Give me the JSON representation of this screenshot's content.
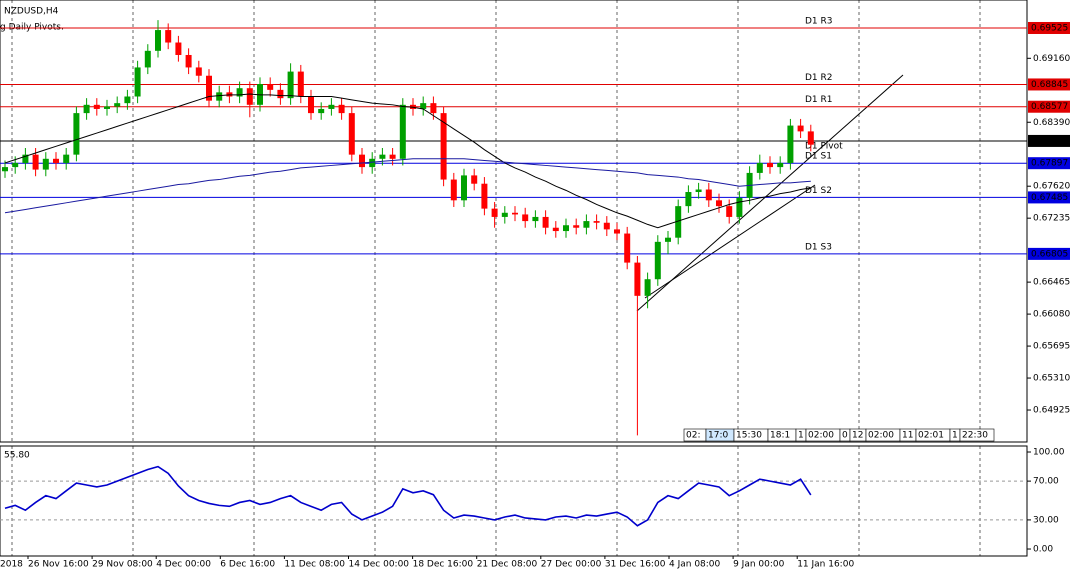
{
  "chart_data": [
    {
      "type": "candlestick",
      "title": "NZDUSD,H4",
      "subtitle": "g Daily Pivots.",
      "up_color": "#00a000",
      "down_color": "#ff0000",
      "open": [
        0.678,
        0.6785,
        0.679,
        0.68,
        0.6782,
        0.6795,
        0.679,
        0.68,
        0.685,
        0.686,
        0.6855,
        0.6858,
        0.6862,
        0.687,
        0.6905,
        0.6925,
        0.695,
        0.6935,
        0.692,
        0.6905,
        0.6895,
        0.6865,
        0.6875,
        0.687,
        0.688,
        0.686,
        0.6885,
        0.6878,
        0.6868,
        0.69,
        0.687,
        0.685,
        0.6855,
        0.686,
        0.685,
        0.68,
        0.6785,
        0.6795,
        0.68,
        0.6795,
        0.686,
        0.6855,
        0.6862,
        0.685,
        0.677,
        0.6745,
        0.6775,
        0.6765,
        0.6735,
        0.6725,
        0.673,
        0.6728,
        0.672,
        0.6725,
        0.6712,
        0.6708,
        0.6715,
        0.6712,
        0.672,
        0.6718,
        0.671,
        0.6705,
        0.667,
        0.663,
        0.665,
        0.6695,
        0.67,
        0.6738,
        0.6755,
        0.6758,
        0.6745,
        0.6738,
        0.6725,
        0.6748,
        0.6778,
        0.679,
        0.6785,
        0.679,
        0.6835,
        0.6828
      ],
      "high": [
        0.6793,
        0.6798,
        0.6808,
        0.6808,
        0.6803,
        0.6803,
        0.6808,
        0.6858,
        0.6868,
        0.6868,
        0.6866,
        0.687,
        0.6878,
        0.6913,
        0.6933,
        0.6962,
        0.6958,
        0.6943,
        0.6928,
        0.6913,
        0.6903,
        0.6883,
        0.6883,
        0.6888,
        0.6888,
        0.6893,
        0.6893,
        0.6886,
        0.691,
        0.6908,
        0.6878,
        0.6863,
        0.6868,
        0.6868,
        0.6858,
        0.6808,
        0.6803,
        0.6808,
        0.6808,
        0.6868,
        0.6868,
        0.687,
        0.687,
        0.6858,
        0.6778,
        0.6783,
        0.6783,
        0.6773,
        0.6743,
        0.6738,
        0.6738,
        0.6736,
        0.6733,
        0.6733,
        0.672,
        0.6723,
        0.6723,
        0.6728,
        0.6728,
        0.6726,
        0.6718,
        0.6713,
        0.6678,
        0.6658,
        0.6703,
        0.6708,
        0.6746,
        0.6763,
        0.6766,
        0.6766,
        0.6753,
        0.6746,
        0.6756,
        0.6786,
        0.68,
        0.6798,
        0.6798,
        0.6843,
        0.6843,
        0.6836
      ],
      "low": [
        0.6772,
        0.6777,
        0.6782,
        0.6774,
        0.6774,
        0.6782,
        0.6782,
        0.6792,
        0.6842,
        0.6847,
        0.6847,
        0.685,
        0.6854,
        0.6862,
        0.6897,
        0.6917,
        0.6927,
        0.6912,
        0.6897,
        0.6887,
        0.6857,
        0.6857,
        0.6862,
        0.6862,
        0.6845,
        0.6852,
        0.687,
        0.686,
        0.686,
        0.6862,
        0.6842,
        0.6842,
        0.6847,
        0.6842,
        0.6792,
        0.6777,
        0.6777,
        0.6787,
        0.6787,
        0.6787,
        0.6847,
        0.6847,
        0.6842,
        0.6762,
        0.6737,
        0.6737,
        0.6757,
        0.6727,
        0.6712,
        0.6717,
        0.672,
        0.6712,
        0.6712,
        0.6704,
        0.67,
        0.67,
        0.6704,
        0.6704,
        0.671,
        0.6702,
        0.6697,
        0.6662,
        0.6462,
        0.6615,
        0.6642,
        0.668,
        0.6692,
        0.673,
        0.6747,
        0.6737,
        0.673,
        0.6717,
        0.6717,
        0.674,
        0.677,
        0.6777,
        0.6777,
        0.6782,
        0.682,
        0.6804
      ],
      "close": [
        0.6785,
        0.679,
        0.68,
        0.6782,
        0.6795,
        0.679,
        0.68,
        0.685,
        0.686,
        0.6855,
        0.6858,
        0.6862,
        0.687,
        0.6905,
        0.6925,
        0.695,
        0.6935,
        0.692,
        0.6905,
        0.6895,
        0.6865,
        0.6875,
        0.687,
        0.688,
        0.686,
        0.6885,
        0.6878,
        0.6868,
        0.69,
        0.687,
        0.685,
        0.6855,
        0.686,
        0.685,
        0.68,
        0.6785,
        0.6795,
        0.68,
        0.6795,
        0.686,
        0.6855,
        0.6862,
        0.685,
        0.677,
        0.6745,
        0.6775,
        0.6765,
        0.6735,
        0.6725,
        0.673,
        0.6728,
        0.672,
        0.6725,
        0.6712,
        0.6708,
        0.6715,
        0.6712,
        0.672,
        0.6718,
        0.671,
        0.6705,
        0.667,
        0.663,
        0.665,
        0.6695,
        0.67,
        0.6738,
        0.6755,
        0.6758,
        0.6745,
        0.6738,
        0.6725,
        0.6748,
        0.6778,
        0.679,
        0.6785,
        0.679,
        0.6835,
        0.6828,
        0.6812
      ],
      "series": [
        {
          "color": "#000000",
          "values": [
            0.679,
            0.6794,
            0.6798,
            0.6802,
            0.6806,
            0.681,
            0.6814,
            0.6818,
            0.6822,
            0.6826,
            0.683,
            0.6834,
            0.6838,
            0.6842,
            0.6846,
            0.685,
            0.6854,
            0.6858,
            0.6862,
            0.6866,
            0.687,
            0.6871,
            0.6872,
            0.6872,
            0.6873,
            0.6872,
            0.6872,
            0.6871,
            0.6871,
            0.687,
            0.687,
            0.687,
            0.687,
            0.6868,
            0.6866,
            0.6864,
            0.6862,
            0.6861,
            0.686,
            0.6858,
            0.6857,
            0.6855,
            0.6847,
            0.6839,
            0.6831,
            0.6823,
            0.6815,
            0.6806,
            0.6798,
            0.679,
            0.6784,
            0.6779,
            0.6773,
            0.6768,
            0.6762,
            0.6757,
            0.6751,
            0.6746,
            0.674,
            0.6735,
            0.673,
            0.6726,
            0.6721,
            0.6716,
            0.6712,
            0.6716,
            0.672,
            0.6724,
            0.6728,
            0.6732,
            0.6736,
            0.674,
            0.6743,
            0.6745,
            0.6748,
            0.675,
            0.6753,
            0.6755,
            0.6758,
            0.676
          ]
        },
        {
          "color": "#1a1aa0",
          "values": [
            0.673,
            0.6732,
            0.6734,
            0.6736,
            0.6738,
            0.674,
            0.6742,
            0.6744,
            0.6746,
            0.6748,
            0.675,
            0.6752,
            0.6754,
            0.6756,
            0.6758,
            0.676,
            0.6762,
            0.6764,
            0.6765,
            0.6767,
            0.6769,
            0.677,
            0.6772,
            0.6774,
            0.6775,
            0.6777,
            0.6779,
            0.678,
            0.6782,
            0.6784,
            0.6785,
            0.6786,
            0.6787,
            0.6788,
            0.6789,
            0.679,
            0.6791,
            0.6792,
            0.6793,
            0.6794,
            0.6795,
            0.6795,
            0.6795,
            0.6795,
            0.6795,
            0.6795,
            0.6794,
            0.6793,
            0.6792,
            0.6791,
            0.679,
            0.6789,
            0.6788,
            0.6787,
            0.6786,
            0.6785,
            0.6784,
            0.6783,
            0.6782,
            0.6781,
            0.678,
            0.6779,
            0.6778,
            0.6776,
            0.6775,
            0.6774,
            0.6773,
            0.6771,
            0.677,
            0.6768,
            0.6766,
            0.6764,
            0.6762,
            0.6763,
            0.6764,
            0.6765,
            0.6766,
            0.6766,
            0.6767,
            0.6768
          ]
        }
      ],
      "levels": [
        {
          "name": "D1 R3",
          "value": 0.69525,
          "color": "#e00000"
        },
        {
          "name": "D1 R2",
          "value": 0.68845,
          "color": "#e00000"
        },
        {
          "name": "D1 R1",
          "value": 0.68577,
          "color": "#e00000"
        },
        {
          "name": "D1 Pivot",
          "value": 0.68165,
          "color": "#000000"
        },
        {
          "name": "D1 S1",
          "value": 0.67897,
          "color": "#0000e0"
        },
        {
          "name": "D1 S2",
          "value": 0.67485,
          "color": "#0000e0"
        },
        {
          "name": "D1 S3",
          "value": 0.66805,
          "color": "#0000e0"
        }
      ],
      "ylim": [
        0.6454,
        0.69862
      ],
      "yticks": [
        {
          "value": 0.6916,
          "label": "0.69160"
        },
        {
          "value": 0.6839,
          "label": "0.68390"
        },
        {
          "value": 0.6762,
          "label": "0.67620"
        },
        0.67235,
        0.66465,
        {
          "value": 0.6608,
          "label": "0.66080"
        },
        0.65695,
        {
          "value": 0.6531,
          "label": "0.65310"
        },
        0.64925
      ],
      "time_labels": [
        "2018",
        "26 Nov 16:00",
        "29 Nov 08:00",
        "4 Dec 00:00",
        "6 Dec 16:00",
        "11 Dec 08:00",
        "14 Dec 00:00",
        "18 Dec 16:00",
        "21 Dec 08:00",
        "27 Dec 00:00",
        "31 Dec 16:00",
        "4 Jan 08:00",
        "9 Jan 00:00",
        "11 Jan 16:00"
      ],
      "time_boxes": [
        "02:",
        "17:0",
        "15:30",
        "18:1",
        "1",
        "02:00",
        "0",
        "12",
        "02:00",
        "11",
        "02:01",
        "1",
        "22:30"
      ]
    },
    {
      "type": "line",
      "title": "55.80",
      "color": "#0000cc",
      "values": [
        42,
        45,
        40,
        48,
        55,
        52,
        60,
        68,
        66,
        64,
        66,
        70,
        74,
        78,
        82,
        85,
        78,
        65,
        55,
        50,
        47,
        45,
        44,
        48,
        50,
        46,
        48,
        52,
        55,
        48,
        44,
        40,
        46,
        48,
        36,
        30,
        34,
        38,
        44,
        62,
        58,
        60,
        56,
        40,
        32,
        35,
        34,
        32,
        30,
        33,
        35,
        32,
        31,
        30,
        33,
        34,
        32,
        35,
        34,
        36,
        38,
        33,
        24,
        30,
        48,
        55,
        52,
        60,
        68,
        66,
        64,
        55,
        60,
        66,
        72,
        70,
        68,
        66,
        72,
        55.8
      ],
      "ylim": [
        -7.2,
        106.2
      ],
      "yticks": [
        {
          "value": 100,
          "label": "100.00"
        },
        {
          "value": 70,
          "label": "70.00"
        },
        {
          "value": 30,
          "label": "30.00"
        },
        {
          "value": 0,
          "label": "0.00"
        }
      ]
    }
  ]
}
